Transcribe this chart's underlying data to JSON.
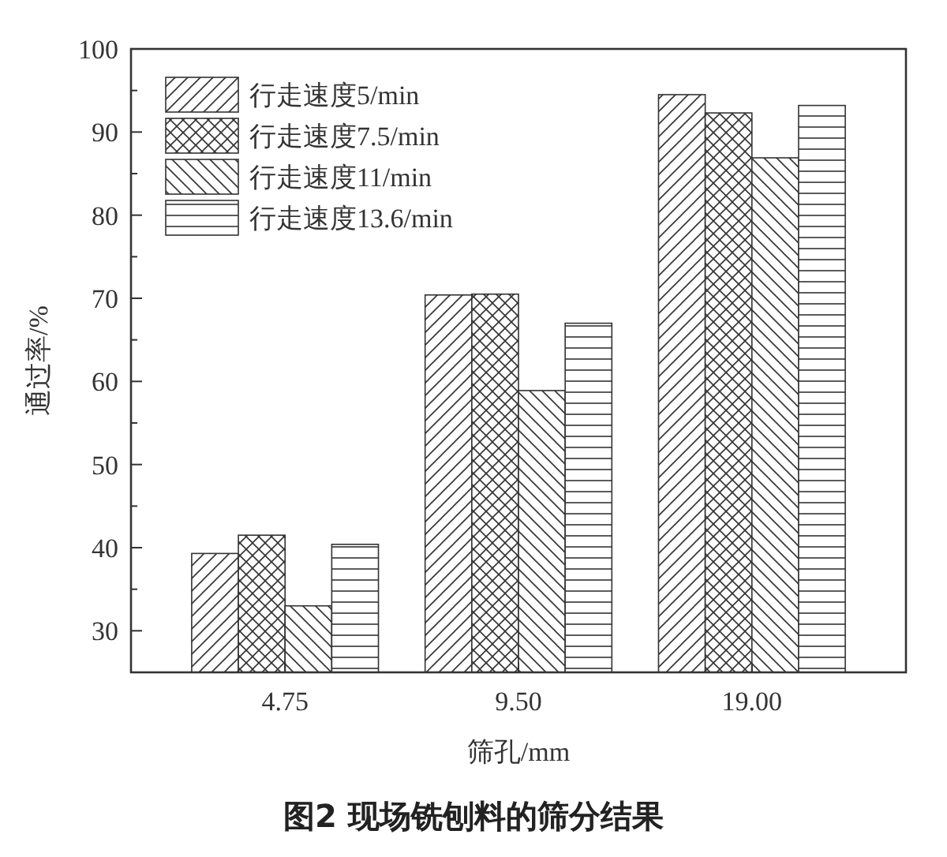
{
  "chart_data": {
    "type": "bar",
    "title": "图2  现场铣刨料的筛分结果",
    "xlabel": "筛孔/mm",
    "ylabel": "通过率/%",
    "categories": [
      "4.75",
      "9.50",
      "19.00"
    ],
    "series": [
      {
        "name": "行走速度5/min",
        "color": "#333333",
        "values": [
          39.3,
          70.4,
          94.5
        ]
      },
      {
        "name": "行走速度7.5/min",
        "color": "#333333",
        "values": [
          41.5,
          70.5,
          92.3
        ]
      },
      {
        "name": "行走速度11/min",
        "color": "#333333",
        "values": [
          33.0,
          58.9,
          86.9
        ]
      },
      {
        "name": "行走速度13.6/min",
        "color": "#333333",
        "values": [
          40.4,
          67.0,
          93.2
        ]
      }
    ],
    "ylim": [
      25,
      100
    ],
    "yticks": [
      {
        "value": 25,
        "label": null
      },
      30,
      {
        "value": 35,
        "label": null
      },
      40,
      {
        "value": 45,
        "label": null
      },
      50,
      {
        "value": 55,
        "label": null
      },
      60,
      {
        "value": 65,
        "label": null
      },
      70,
      {
        "value": 75,
        "label": null
      },
      80,
      {
        "value": 85,
        "label": null
      },
      90,
      {
        "value": 95,
        "label": null
      },
      100
    ],
    "legend": "top left",
    "grid": false
  }
}
